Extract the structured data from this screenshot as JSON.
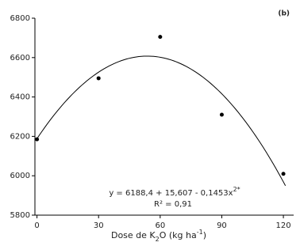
{
  "chart_data": {
    "type": "scatter",
    "panel_label": "(b)",
    "x_label_parts": [
      "Dose de K",
      "2",
      "O (kg ha",
      "-1",
      ")"
    ],
    "x": [
      0,
      30,
      60,
      90,
      120
    ],
    "values": [
      6185,
      6495,
      6705,
      6310,
      6010
    ],
    "color": "#000000",
    "fit": {
      "intercept": 6188.4,
      "linear": 15.607,
      "quadratic": -0.1453,
      "x_end": 121
    },
    "equation_parts": [
      "y = 6188,4 + 15,607 - 0,1453x",
      "2*"
    ],
    "r2_label": "R² = 0,91",
    "xlim": [
      -1,
      125
    ],
    "xticks": [
      0,
      30,
      60,
      90,
      120
    ],
    "ylim": [
      5800,
      6800
    ],
    "yticks": [
      5800,
      6000,
      6200,
      6400,
      6600,
      6800
    ],
    "grid": false
  }
}
